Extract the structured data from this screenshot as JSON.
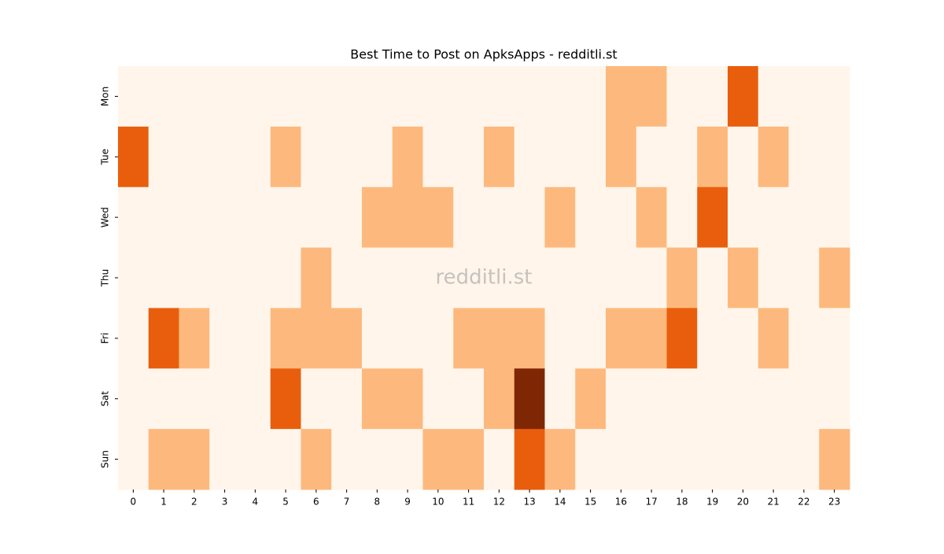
{
  "chart_data": {
    "type": "heatmap",
    "title": "Best Time to Post on ApksApps - redditli.st",
    "watermark": "redditli.st",
    "x_categories": [
      "0",
      "1",
      "2",
      "3",
      "4",
      "5",
      "6",
      "7",
      "8",
      "9",
      "10",
      "11",
      "12",
      "13",
      "14",
      "15",
      "16",
      "17",
      "18",
      "19",
      "20",
      "21",
      "22",
      "23"
    ],
    "y_categories": [
      "Mon",
      "Tue",
      "Wed",
      "Thu",
      "Fri",
      "Sat",
      "Sun"
    ],
    "colors": [
      "#fff5eb",
      "#fdb97d",
      "#e95e0d",
      "#7f2704"
    ],
    "values": [
      [
        0,
        0,
        0,
        0,
        0,
        0,
        0,
        0,
        0,
        0,
        0,
        0,
        0,
        0,
        0,
        0,
        1,
        1,
        0,
        0,
        2,
        0,
        0,
        0
      ],
      [
        2,
        0,
        0,
        0,
        0,
        1,
        0,
        0,
        0,
        1,
        0,
        0,
        1,
        0,
        0,
        0,
        1,
        0,
        0,
        1,
        0,
        1,
        0,
        0
      ],
      [
        0,
        0,
        0,
        0,
        0,
        0,
        0,
        0,
        1,
        1,
        1,
        0,
        0,
        0,
        1,
        0,
        0,
        1,
        0,
        2,
        0,
        0,
        0,
        0
      ],
      [
        0,
        0,
        0,
        0,
        0,
        0,
        1,
        0,
        0,
        0,
        0,
        0,
        0,
        0,
        0,
        0,
        0,
        0,
        1,
        0,
        1,
        0,
        0,
        1
      ],
      [
        0,
        2,
        1,
        0,
        0,
        1,
        1,
        1,
        0,
        0,
        0,
        1,
        1,
        1,
        0,
        0,
        1,
        1,
        2,
        0,
        0,
        1,
        0,
        0
      ],
      [
        0,
        0,
        0,
        0,
        0,
        2,
        0,
        0,
        1,
        1,
        0,
        0,
        1,
        3,
        0,
        1,
        0,
        0,
        0,
        0,
        0,
        0,
        0,
        0
      ],
      [
        0,
        1,
        1,
        0,
        0,
        0,
        1,
        0,
        0,
        0,
        1,
        1,
        0,
        2,
        1,
        0,
        0,
        0,
        0,
        0,
        0,
        0,
        0,
        1
      ]
    ]
  }
}
